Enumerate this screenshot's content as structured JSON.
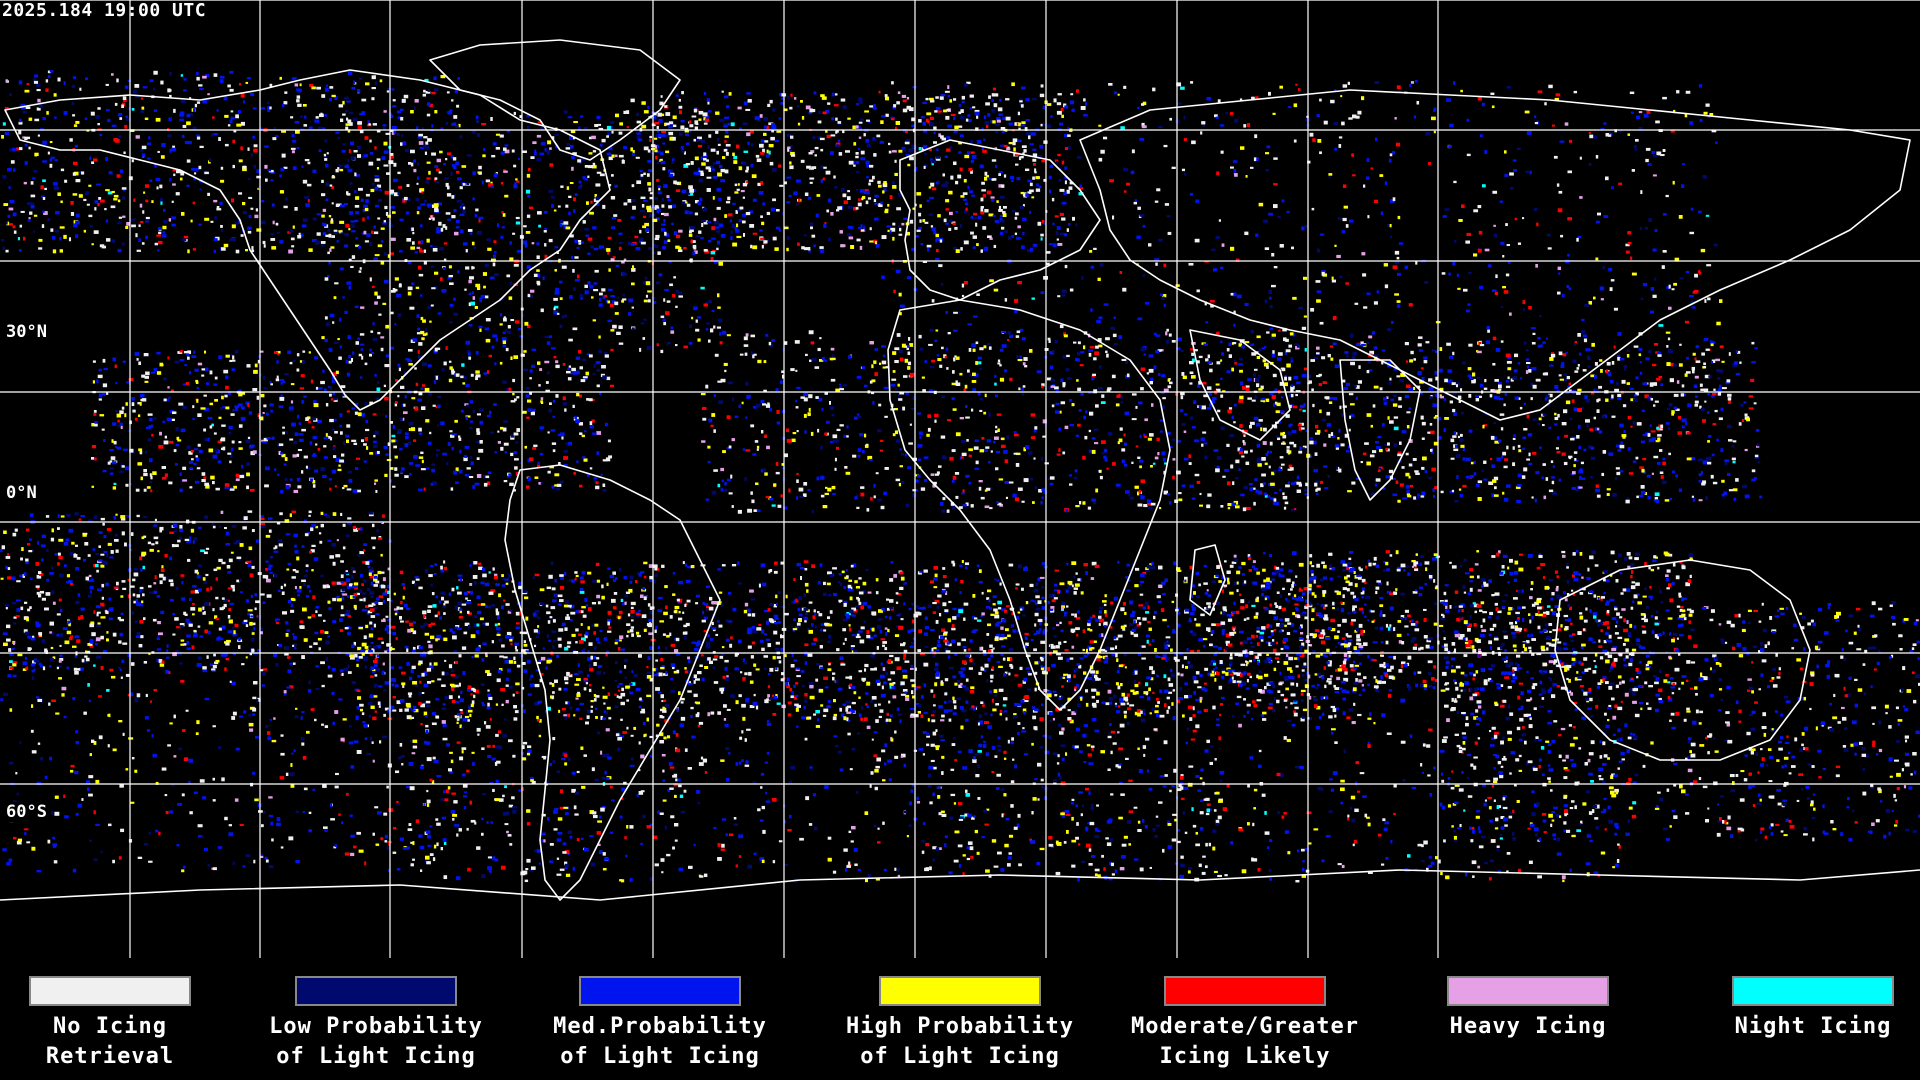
{
  "timestamp": "2025.184 19:00 UTC",
  "lat_labels": [
    "30°N",
    "0°N",
    "60°S"
  ],
  "legend": [
    {
      "line1": "No Icing",
      "line2": "Retrieval",
      "color": "#f0f0f0"
    },
    {
      "line1": "Low Probability",
      "line2": "of Light Icing",
      "color": "#000a6e"
    },
    {
      "line1": "Med.Probability",
      "line2": "of Light Icing",
      "color": "#0014f0"
    },
    {
      "line1": "High Probability",
      "line2": "of Light Icing",
      "color": "#ffff00"
    },
    {
      "line1": "Moderate/Greater",
      "line2": "Icing Likely",
      "color": "#ff0000"
    },
    {
      "line1": "Heavy Icing",
      "line2": "",
      "color": "#e6a0e6"
    },
    {
      "line1": "Night Icing",
      "line2": "",
      "color": "#00ffff"
    }
  ],
  "colors": {
    "background": "#000000",
    "grid": "#ffffff",
    "coastline": "#ffffff"
  }
}
